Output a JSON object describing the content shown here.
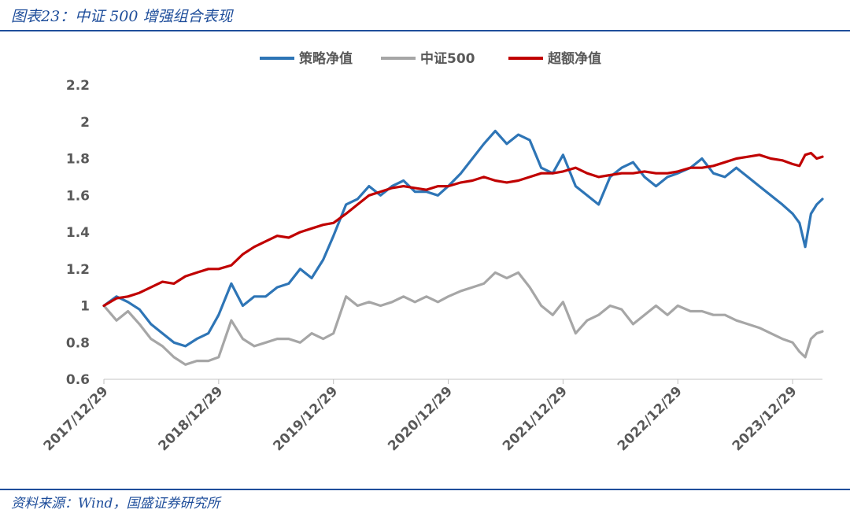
{
  "header": {
    "title": "图表23：中证 500 增强组合表现"
  },
  "footer": {
    "source": "资料来源：Wind，国盛证券研究所"
  },
  "chart_data": {
    "type": "line",
    "title": "",
    "xlabel": "",
    "ylabel": "",
    "ylim": [
      0.6,
      2.2
    ],
    "yticks": [
      0.6,
      0.8,
      1,
      1.2,
      1.4,
      1.6,
      1.8,
      2,
      2.2
    ],
    "ytick_labels": [
      "0.6",
      "0.8",
      "1",
      "1.2",
      "1.4",
      "1.6",
      "1.8",
      "2",
      "2.2"
    ],
    "xlim": [
      2017.99,
      2024.25
    ],
    "xticks": [
      2017.99,
      2018.99,
      2019.99,
      2020.99,
      2021.99,
      2022.99,
      2023.99
    ],
    "xtick_labels": [
      "2017/12/29",
      "2018/12/29",
      "2019/12/29",
      "2020/12/29",
      "2021/12/29",
      "2022/12/29",
      "2023/12/29"
    ],
    "grid": false,
    "legend": "top-center",
    "series": [
      {
        "name": "策略净值",
        "color": "#2e75b6",
        "x": [
          2017.99,
          2018.1,
          2018.2,
          2018.3,
          2018.4,
          2018.5,
          2018.6,
          2018.7,
          2018.8,
          2018.9,
          2018.99,
          2019.1,
          2019.2,
          2019.3,
          2019.4,
          2019.5,
          2019.6,
          2019.7,
          2019.8,
          2019.9,
          2019.99,
          2020.1,
          2020.2,
          2020.3,
          2020.4,
          2020.5,
          2020.6,
          2020.7,
          2020.8,
          2020.9,
          2020.99,
          2021.1,
          2021.2,
          2021.3,
          2021.4,
          2021.5,
          2021.6,
          2021.7,
          2021.8,
          2021.9,
          2021.99,
          2022.1,
          2022.2,
          2022.3,
          2022.4,
          2022.5,
          2022.6,
          2022.7,
          2022.8,
          2022.9,
          2022.99,
          2023.1,
          2023.2,
          2023.3,
          2023.4,
          2023.5,
          2023.6,
          2023.7,
          2023.8,
          2023.9,
          2023.99,
          2024.05,
          2024.1,
          2024.15,
          2024.2,
          2024.25
        ],
        "y": [
          1.0,
          1.05,
          1.02,
          0.98,
          0.9,
          0.85,
          0.8,
          0.78,
          0.82,
          0.85,
          0.95,
          1.12,
          1.0,
          1.05,
          1.05,
          1.1,
          1.12,
          1.2,
          1.15,
          1.25,
          1.38,
          1.55,
          1.58,
          1.65,
          1.6,
          1.65,
          1.68,
          1.62,
          1.62,
          1.6,
          1.65,
          1.72,
          1.8,
          1.88,
          1.95,
          1.88,
          1.93,
          1.9,
          1.75,
          1.72,
          1.82,
          1.65,
          1.6,
          1.55,
          1.7,
          1.75,
          1.78,
          1.7,
          1.65,
          1.7,
          1.72,
          1.75,
          1.8,
          1.72,
          1.7,
          1.75,
          1.7,
          1.65,
          1.6,
          1.55,
          1.5,
          1.45,
          1.32,
          1.5,
          1.55,
          1.58
        ]
      },
      {
        "name": "中证500",
        "color": "#a6a6a6",
        "x": [
          2017.99,
          2018.1,
          2018.2,
          2018.3,
          2018.4,
          2018.5,
          2018.6,
          2018.7,
          2018.8,
          2018.9,
          2018.99,
          2019.1,
          2019.2,
          2019.3,
          2019.4,
          2019.5,
          2019.6,
          2019.7,
          2019.8,
          2019.9,
          2019.99,
          2020.1,
          2020.2,
          2020.3,
          2020.4,
          2020.5,
          2020.6,
          2020.7,
          2020.8,
          2020.9,
          2020.99,
          2021.1,
          2021.2,
          2021.3,
          2021.4,
          2021.5,
          2021.6,
          2021.7,
          2021.8,
          2021.9,
          2021.99,
          2022.1,
          2022.2,
          2022.3,
          2022.4,
          2022.5,
          2022.6,
          2022.7,
          2022.8,
          2022.9,
          2022.99,
          2023.1,
          2023.2,
          2023.3,
          2023.4,
          2023.5,
          2023.6,
          2023.7,
          2023.8,
          2023.9,
          2023.99,
          2024.05,
          2024.1,
          2024.15,
          2024.2,
          2024.25
        ],
        "y": [
          1.0,
          0.92,
          0.97,
          0.9,
          0.82,
          0.78,
          0.72,
          0.68,
          0.7,
          0.7,
          0.72,
          0.92,
          0.82,
          0.78,
          0.8,
          0.82,
          0.82,
          0.8,
          0.85,
          0.82,
          0.85,
          1.05,
          1.0,
          1.02,
          1.0,
          1.02,
          1.05,
          1.02,
          1.05,
          1.02,
          1.05,
          1.08,
          1.1,
          1.12,
          1.18,
          1.15,
          1.18,
          1.1,
          1.0,
          0.95,
          1.02,
          0.85,
          0.92,
          0.95,
          1.0,
          0.98,
          0.9,
          0.95,
          1.0,
          0.95,
          1.0,
          0.97,
          0.97,
          0.95,
          0.95,
          0.92,
          0.9,
          0.88,
          0.85,
          0.82,
          0.8,
          0.75,
          0.72,
          0.82,
          0.85,
          0.86
        ]
      },
      {
        "name": "超额净值",
        "color": "#c00000",
        "x": [
          2017.99,
          2018.1,
          2018.2,
          2018.3,
          2018.4,
          2018.5,
          2018.6,
          2018.7,
          2018.8,
          2018.9,
          2018.99,
          2019.1,
          2019.2,
          2019.3,
          2019.4,
          2019.5,
          2019.6,
          2019.7,
          2019.8,
          2019.9,
          2019.99,
          2020.1,
          2020.2,
          2020.3,
          2020.4,
          2020.5,
          2020.6,
          2020.7,
          2020.8,
          2020.9,
          2020.99,
          2021.1,
          2021.2,
          2021.3,
          2021.4,
          2021.5,
          2021.6,
          2021.7,
          2021.8,
          2021.9,
          2021.99,
          2022.1,
          2022.2,
          2022.3,
          2022.4,
          2022.5,
          2022.6,
          2022.7,
          2022.8,
          2022.9,
          2022.99,
          2023.1,
          2023.2,
          2023.3,
          2023.4,
          2023.5,
          2023.6,
          2023.7,
          2023.8,
          2023.9,
          2023.99,
          2024.05,
          2024.1,
          2024.15,
          2024.2,
          2024.25
        ],
        "y": [
          1.0,
          1.04,
          1.05,
          1.07,
          1.1,
          1.13,
          1.12,
          1.16,
          1.18,
          1.2,
          1.2,
          1.22,
          1.28,
          1.32,
          1.35,
          1.38,
          1.37,
          1.4,
          1.42,
          1.44,
          1.45,
          1.5,
          1.55,
          1.6,
          1.62,
          1.64,
          1.65,
          1.64,
          1.63,
          1.65,
          1.65,
          1.67,
          1.68,
          1.7,
          1.68,
          1.67,
          1.68,
          1.7,
          1.72,
          1.72,
          1.73,
          1.75,
          1.72,
          1.7,
          1.71,
          1.72,
          1.72,
          1.73,
          1.72,
          1.72,
          1.73,
          1.75,
          1.75,
          1.76,
          1.78,
          1.8,
          1.81,
          1.82,
          1.8,
          1.79,
          1.77,
          1.76,
          1.82,
          1.83,
          1.8,
          1.81
        ]
      }
    ]
  }
}
